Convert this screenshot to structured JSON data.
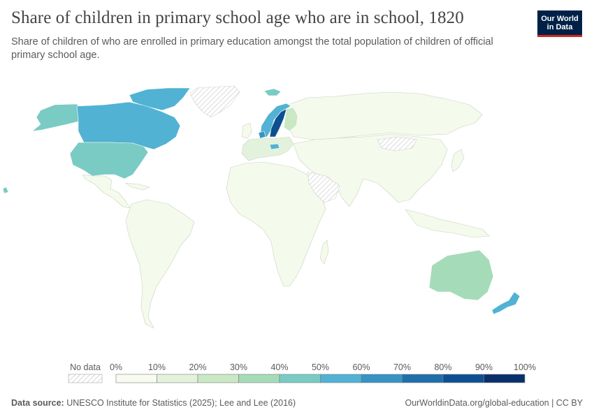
{
  "header": {
    "title": "Share of children in primary school age who are in school, 1820",
    "subtitle": "Share of children of who are enrolled in primary education amongst the total population of children of official primary school age."
  },
  "logo": {
    "line1": "Our World",
    "line2": "in Data",
    "bg_color": "#002147",
    "accent_color": "#ce261e"
  },
  "legend": {
    "no_data_label": "No data",
    "ticks": [
      "0%",
      "10%",
      "20%",
      "30%",
      "40%",
      "50%",
      "60%",
      "70%",
      "80%",
      "90%",
      "100%"
    ],
    "colors": [
      "#f7fbf0",
      "#e3f2dc",
      "#c9e8c3",
      "#a6dbb9",
      "#79cbc3",
      "#51b2d3",
      "#3793c3",
      "#1f6fab",
      "#0d4f91",
      "#08306b"
    ]
  },
  "map_data": {
    "metric": "share of children of primary school age enrolled (%)",
    "year": 1820,
    "regions": [
      {
        "name": "United States",
        "bin": 3
      },
      {
        "name": "Canada",
        "bin": 5
      },
      {
        "name": "Alaska",
        "bin": 3
      },
      {
        "name": "Greenland",
        "bin": null
      },
      {
        "name": "Mexico",
        "bin": 0
      },
      {
        "name": "South America",
        "bin": 0
      },
      {
        "name": "Norway",
        "bin": 5
      },
      {
        "name": "Sweden",
        "bin": 9
      },
      {
        "name": "Finland",
        "bin": 2
      },
      {
        "name": "Denmark",
        "bin": 6
      },
      {
        "name": "Germany",
        "bin": 2
      },
      {
        "name": "Austria",
        "bin": 5
      },
      {
        "name": "France",
        "bin": 1
      },
      {
        "name": "Iceland",
        "bin": 4
      },
      {
        "name": "Russia",
        "bin": 0
      },
      {
        "name": "Africa",
        "bin": 0
      },
      {
        "name": "Asia",
        "bin": 0
      },
      {
        "name": "Australia",
        "bin": 3
      },
      {
        "name": "New Zealand",
        "bin": 5
      }
    ]
  },
  "footer": {
    "source_label": "Data source:",
    "source_text": "UNESCO Institute for Statistics (2025); Lee and Lee (2016)",
    "url_text": "OurWorldinData.org/global-education | CC BY"
  }
}
